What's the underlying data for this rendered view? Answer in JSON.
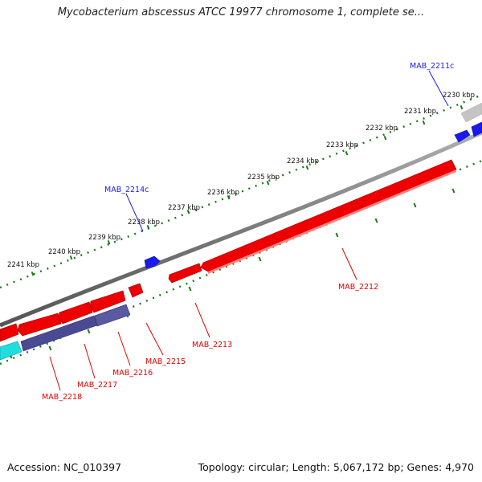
{
  "title": "Mycobacterium abscessus ATCC 19977 chromosome 1, complete se...",
  "footer": {
    "accession": "Accession: NC_010397",
    "summary": "Topology: circular; Length: 5,067,172 bp; Genes: 4,970"
  },
  "colors": {
    "background": "#ffffff",
    "backbone": "#808080",
    "forward_gene": "#ee0000",
    "reverse_gene": "#1a1aee",
    "slate_gene": "#4a4a94",
    "cyan_gene": "#22dddd",
    "ticks": "#1a7a1a",
    "pseudo_gene": "#c8c8c8"
  },
  "scale_labels": [
    "2230 kbp",
    "2231 kbp",
    "2232 kbp",
    "2233 kbp",
    "2234 kbp",
    "2235 kbp",
    "2236 kbp",
    "2237 kbp",
    "2238 kbp",
    "2239 kbp",
    "2240 kbp",
    "2241 kbp"
  ],
  "gene_labels": [
    "MAB_2211c",
    "MAB_2214c",
    "MAB_2212",
    "MAB_2213",
    "MAB_2215",
    "MAB_2216",
    "MAB_2217",
    "MAB_2218"
  ]
}
